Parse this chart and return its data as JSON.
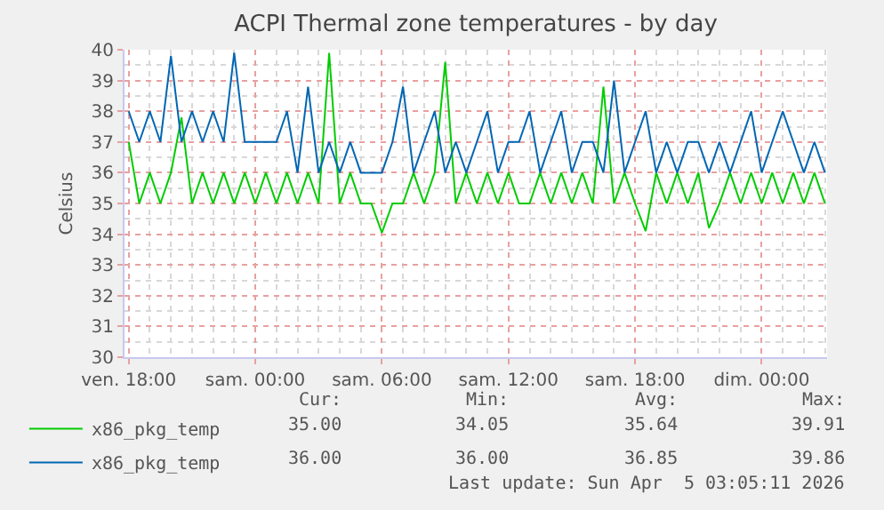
{
  "chart_data": {
    "type": "line",
    "title": "ACPI Thermal zone temperatures - by day",
    "ylabel": "Celsius",
    "x": [
      "2026-04-03T18:00",
      "2026-04-03T18:30",
      "2026-04-03T19:00",
      "2026-04-03T19:30",
      "2026-04-03T20:00",
      "2026-04-03T20:30",
      "2026-04-03T21:00",
      "2026-04-03T21:30",
      "2026-04-03T22:00",
      "2026-04-03T22:30",
      "2026-04-03T23:00",
      "2026-04-03T23:30",
      "2026-04-04T00:00",
      "2026-04-04T00:30",
      "2026-04-04T01:00",
      "2026-04-04T01:30",
      "2026-04-04T02:00",
      "2026-04-04T02:30",
      "2026-04-04T03:00",
      "2026-04-04T03:30",
      "2026-04-04T04:00",
      "2026-04-04T04:30",
      "2026-04-04T05:00",
      "2026-04-04T05:30",
      "2026-04-04T06:00",
      "2026-04-04T06:30",
      "2026-04-04T07:00",
      "2026-04-04T07:30",
      "2026-04-04T08:00",
      "2026-04-04T08:30",
      "2026-04-04T09:00",
      "2026-04-04T09:30",
      "2026-04-04T10:00",
      "2026-04-04T10:30",
      "2026-04-04T11:00",
      "2026-04-04T11:30",
      "2026-04-04T12:00",
      "2026-04-04T12:30",
      "2026-04-04T13:00",
      "2026-04-04T13:30",
      "2026-04-04T14:00",
      "2026-04-04T14:30",
      "2026-04-04T15:00",
      "2026-04-04T15:30",
      "2026-04-04T16:00",
      "2026-04-04T16:30",
      "2026-04-04T17:00",
      "2026-04-04T17:30",
      "2026-04-04T18:00",
      "2026-04-04T18:30",
      "2026-04-04T19:00",
      "2026-04-04T19:30",
      "2026-04-04T20:00",
      "2026-04-04T20:30",
      "2026-04-04T21:00",
      "2026-04-04T21:30",
      "2026-04-04T22:00",
      "2026-04-04T22:30",
      "2026-04-04T23:00",
      "2026-04-04T23:30",
      "2026-04-05T00:00",
      "2026-04-05T00:30",
      "2026-04-05T01:00",
      "2026-04-05T01:30",
      "2026-04-05T02:00",
      "2026-04-05T02:30",
      "2026-04-05T03:00"
    ],
    "series": [
      {
        "name": "x86_pkg_temp",
        "color": "#00cc00",
        "values": [
          37,
          35,
          36,
          35,
          36,
          37.8,
          35,
          36,
          35,
          36,
          35,
          36,
          35,
          36,
          35,
          36,
          35,
          36,
          35,
          39.9,
          35,
          36,
          35,
          35,
          34.05,
          35,
          35,
          36,
          35,
          36,
          39.6,
          35,
          36,
          35,
          36,
          35,
          36,
          35,
          35,
          36,
          35,
          36,
          35,
          36,
          35,
          38.8,
          35,
          36,
          35,
          34.1,
          36,
          35,
          36,
          35,
          36,
          34.2,
          35,
          36,
          35,
          36,
          35,
          36,
          35,
          36,
          35,
          36,
          35
        ]
      },
      {
        "name": "x86_pkg_temp",
        "color": "#0066b3",
        "values": [
          38,
          37,
          38,
          37,
          39.8,
          37,
          38,
          37,
          38,
          37,
          39.9,
          37,
          37,
          37,
          37,
          38,
          36,
          38.8,
          36,
          37,
          36,
          37,
          36,
          36,
          36,
          37,
          38.8,
          36,
          37,
          38,
          36,
          37,
          36,
          37,
          38,
          36,
          37,
          37,
          38,
          36,
          37,
          38,
          36,
          37,
          37,
          36,
          39,
          36,
          37,
          38,
          36,
          37,
          36,
          37,
          37,
          36,
          37,
          36,
          37,
          38,
          36,
          37,
          38,
          37,
          36,
          37,
          36
        ]
      }
    ],
    "xlim": [
      "2026-04-03T17:48",
      "2026-04-05T03:06"
    ],
    "xticks": [
      {
        "value": "2026-04-03T18:00",
        "label": "ven. 18:00"
      },
      {
        "value": "2026-04-04T00:00",
        "label": "sam. 00:00"
      },
      {
        "value": "2026-04-04T06:00",
        "label": "sam. 06:00"
      },
      {
        "value": "2026-04-04T12:00",
        "label": "sam. 12:00"
      },
      {
        "value": "2026-04-04T18:00",
        "label": "sam. 18:00"
      },
      {
        "value": "2026-04-05T00:00",
        "label": "dim. 00:00"
      }
    ],
    "ylim": [
      30,
      40
    ],
    "yticks": [
      30,
      31,
      32,
      33,
      34,
      35,
      36,
      37,
      38,
      39,
      40
    ],
    "grid": true,
    "legend": "bottom",
    "annotations": [
      "Cur:",
      "Min:",
      "Avg:",
      "Max:",
      "35.00",
      "34.05",
      "35.64",
      "39.91",
      "36.00",
      "36.00",
      "36.85",
      "39.86",
      "Last update: Sun Apr  5 03:05:11 2026"
    ]
  }
}
